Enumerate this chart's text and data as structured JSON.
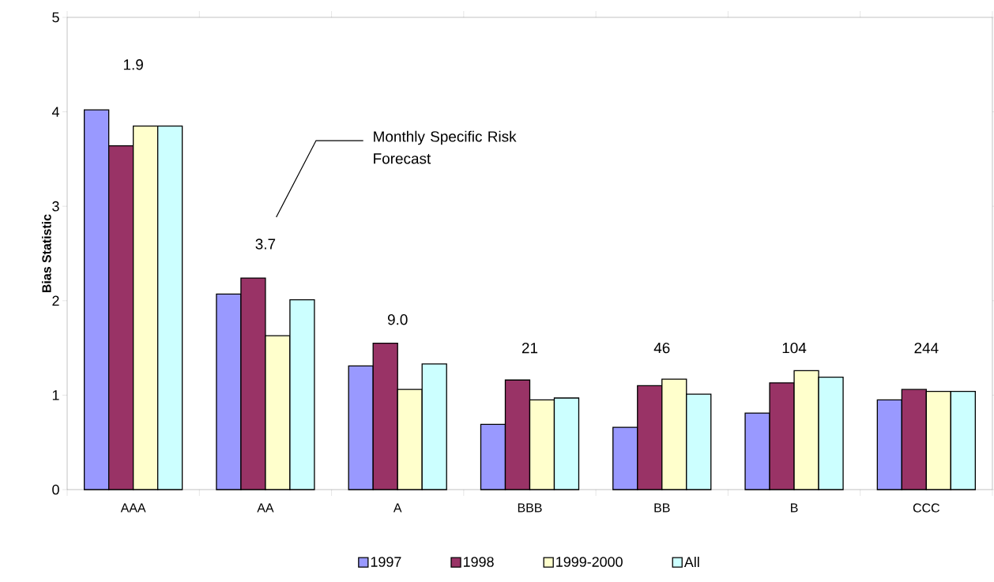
{
  "chart_data": {
    "type": "bar",
    "ylabel": "Bias Statistic",
    "categories": [
      "AAA",
      "AA",
      "A",
      "BBB",
      "BB",
      "B",
      "CCC"
    ],
    "series": [
      {
        "name": "1997",
        "color": "#9999ff",
        "values": [
          4.02,
          2.07,
          1.31,
          0.69,
          0.66,
          0.81,
          0.95
        ]
      },
      {
        "name": "1998",
        "color": "#993366",
        "values": [
          3.64,
          2.24,
          1.55,
          1.16,
          1.1,
          1.13,
          1.06
        ]
      },
      {
        "name": "1999-2000",
        "color": "#ffffcc",
        "values": [
          3.85,
          1.63,
          1.06,
          0.95,
          1.17,
          1.26,
          1.04
        ]
      },
      {
        "name": "All",
        "color": "#ccffff",
        "values": [
          3.85,
          2.01,
          1.33,
          0.97,
          1.01,
          1.19,
          1.04
        ]
      }
    ],
    "ylim": [
      0,
      5
    ],
    "yticks": [
      0,
      1,
      2,
      3,
      4,
      5
    ],
    "legend": "bottom",
    "grid": false,
    "annotations": [
      "1.9",
      "3.7",
      "9.0",
      "21",
      "46",
      "104",
      "244",
      "Monthly Specific Risk Forecast"
    ]
  }
}
